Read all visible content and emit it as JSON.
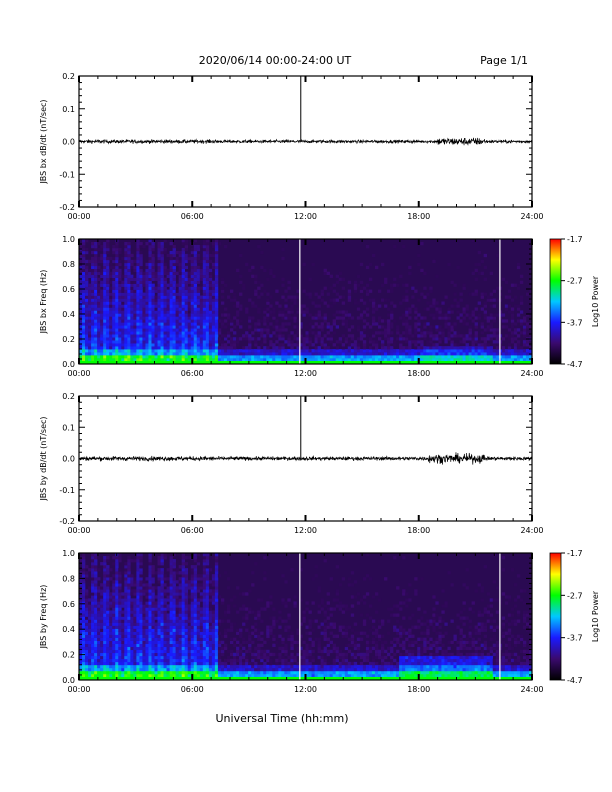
{
  "header": {
    "title": "2020/06/14  00:00-24:00 UT",
    "page": "Page 1/1"
  },
  "footer": {
    "xlabel": "Universal Time (hh:mm)"
  },
  "colors": {
    "spectrogram_background": "#2a0a52",
    "colormap": [
      "#000000",
      "#3a0a6e",
      "#1a1aff",
      "#00c8ff",
      "#00ff00",
      "#ffff00",
      "#ff0000"
    ]
  },
  "chart_data": [
    {
      "type": "line",
      "name": "jbs-bx-dbdt",
      "ylabel": "JBS bx dB/dt (nT/sec)",
      "xlim": [
        0,
        24
      ],
      "ylim": [
        -0.2,
        0.2
      ],
      "x_ticks": [
        "00:00",
        "06:00",
        "12:00",
        "18:00",
        "24:00"
      ],
      "y_ticks": [
        "0.2",
        "0.1",
        "0.0",
        "-0.1",
        "-0.2"
      ],
      "description_of_data": "noise around 0.0 with amplitude ~0.01",
      "spike": {
        "time_h": 11.75,
        "ymin": 0.0,
        "ymax": 0.2
      },
      "active_interval_h": [
        19.0,
        21.5
      ],
      "active_amplitude": 0.02,
      "base_amplitude": 0.008
    },
    {
      "type": "heatmap",
      "name": "jbs-bx-spectrogram",
      "ylabel": "JBS bx Freq (Hz)",
      "xlim": [
        0,
        24
      ],
      "ylim": [
        0.0,
        1.0
      ],
      "x_ticks": [
        "00:00",
        "06:00",
        "12:00",
        "18:00",
        "24:00"
      ],
      "y_ticks": [
        "1.0",
        "0.8",
        "0.6",
        "0.4",
        "0.2",
        "0.0"
      ],
      "colorbar": {
        "label": "Log10 Power",
        "ticks": [
          "-1.7",
          "-2.7",
          "-3.7",
          "-4.7"
        ],
        "range": [
          -4.7,
          -1.7
        ]
      },
      "white_lines_h": [
        11.7,
        22.3
      ],
      "quiet_start_h": 7.4
    },
    {
      "type": "line",
      "name": "jbs-by-dbdt",
      "ylabel": "JBS by dB/dt (nT/sec)",
      "xlim": [
        0,
        24
      ],
      "ylim": [
        -0.2,
        0.2
      ],
      "x_ticks": [
        "00:00",
        "06:00",
        "12:00",
        "18:00",
        "24:00"
      ],
      "y_ticks": [
        "0.2",
        "0.1",
        "0.0",
        "-0.1",
        "-0.2"
      ],
      "spike": {
        "time_h": 11.75,
        "ymin": 0.0,
        "ymax": 0.2
      },
      "active_interval_h": [
        18.5,
        21.5
      ],
      "active_amplitude": 0.025,
      "base_amplitude": 0.01
    },
    {
      "type": "heatmap",
      "name": "jbs-by-spectrogram",
      "ylabel": "JBS by Freq (Hz)",
      "xlim": [
        0,
        24
      ],
      "ylim": [
        0.0,
        1.0
      ],
      "x_ticks": [
        "00:00",
        "06:00",
        "12:00",
        "18:00",
        "24:00"
      ],
      "y_ticks": [
        "1.0",
        "0.8",
        "0.6",
        "0.4",
        "0.2",
        "0.0"
      ],
      "colorbar": {
        "label": "Log10 Power",
        "ticks": [
          "-1.7",
          "-2.7",
          "-3.7",
          "-4.7"
        ],
        "range": [
          -4.7,
          -1.7
        ]
      },
      "white_lines_h": [
        11.7,
        22.3
      ],
      "quiet_start_h": 7.4
    }
  ]
}
